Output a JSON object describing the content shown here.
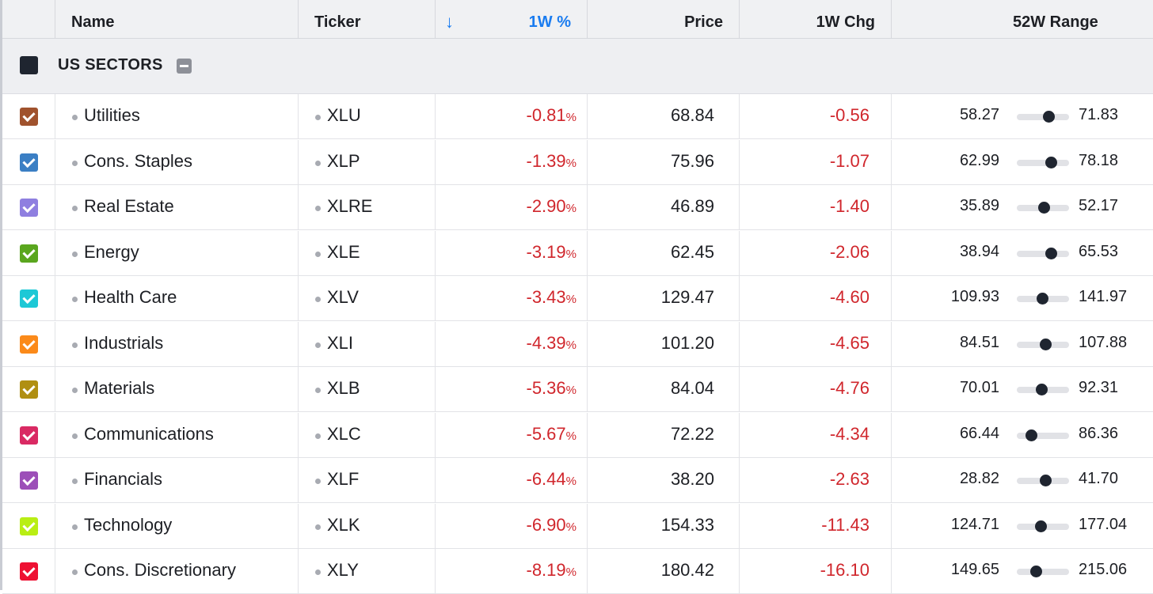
{
  "columns": {
    "name": "Name",
    "ticker": "Ticker",
    "sort_icon": "arrow-down-icon",
    "week_pct": "1W %",
    "price": "Price",
    "week_chg": "1W Chg",
    "range": "52W Range"
  },
  "group": {
    "label": "US SECTORS"
  },
  "colors": {
    "negative": "#d0262c",
    "accent": "#1a7cf0"
  },
  "rows": [
    {
      "name": "Utilities",
      "ticker": "XLU",
      "pct": "-0.81",
      "price": "68.84",
      "chg": "-0.56",
      "low": "58.27",
      "high": "71.83",
      "color": "#a0522d",
      "position": 0.61
    },
    {
      "name": "Cons. Staples",
      "ticker": "XLP",
      "pct": "-1.39",
      "price": "75.96",
      "chg": "-1.07",
      "low": "62.99",
      "high": "78.18",
      "color": "#3b7fc4",
      "position": 0.65
    },
    {
      "name": "Real Estate",
      "ticker": "XLRE",
      "pct": "-2.90",
      "price": "46.89",
      "chg": "-1.40",
      "low": "35.89",
      "high": "52.17",
      "color": "#8f7fe0",
      "position": 0.52
    },
    {
      "name": "Energy",
      "ticker": "XLE",
      "pct": "-3.19",
      "price": "62.45",
      "chg": "-2.06",
      "low": "38.94",
      "high": "65.53",
      "color": "#5aa61e",
      "position": 0.65
    },
    {
      "name": "Health Care",
      "ticker": "XLV",
      "pct": "-3.43",
      "price": "129.47",
      "chg": "-4.60",
      "low": "109.93",
      "high": "141.97",
      "color": "#1dc8d6",
      "position": 0.48
    },
    {
      "name": "Industrials",
      "ticker": "XLI",
      "pct": "-4.39",
      "price": "101.20",
      "chg": "-4.65",
      "low": "84.51",
      "high": "107.88",
      "color": "#fb8a1a",
      "position": 0.54
    },
    {
      "name": "Materials",
      "ticker": "XLB",
      "pct": "-5.36",
      "price": "84.04",
      "chg": "-4.76",
      "low": "70.01",
      "high": "92.31",
      "color": "#b08f12",
      "position": 0.47
    },
    {
      "name": "Communications",
      "ticker": "XLC",
      "pct": "-5.67",
      "price": "72.22",
      "chg": "-4.34",
      "low": "66.44",
      "high": "86.36",
      "color": "#d92a63",
      "position": 0.28
    },
    {
      "name": "Financials",
      "ticker": "XLF",
      "pct": "-6.44",
      "price": "38.20",
      "chg": "-2.63",
      "low": "28.82",
      "high": "41.70",
      "color": "#9c4fb8",
      "position": 0.55
    },
    {
      "name": "Technology",
      "ticker": "XLK",
      "pct": "-6.90",
      "price": "154.33",
      "chg": "-11.43",
      "low": "124.71",
      "high": "177.04",
      "color": "#b9ee14",
      "position": 0.45
    },
    {
      "name": "Cons. Discretionary",
      "ticker": "XLY",
      "pct": "-8.19",
      "price": "180.42",
      "chg": "-16.10",
      "low": "149.65",
      "high": "215.06",
      "color": "#ee1133",
      "position": 0.37
    }
  ]
}
